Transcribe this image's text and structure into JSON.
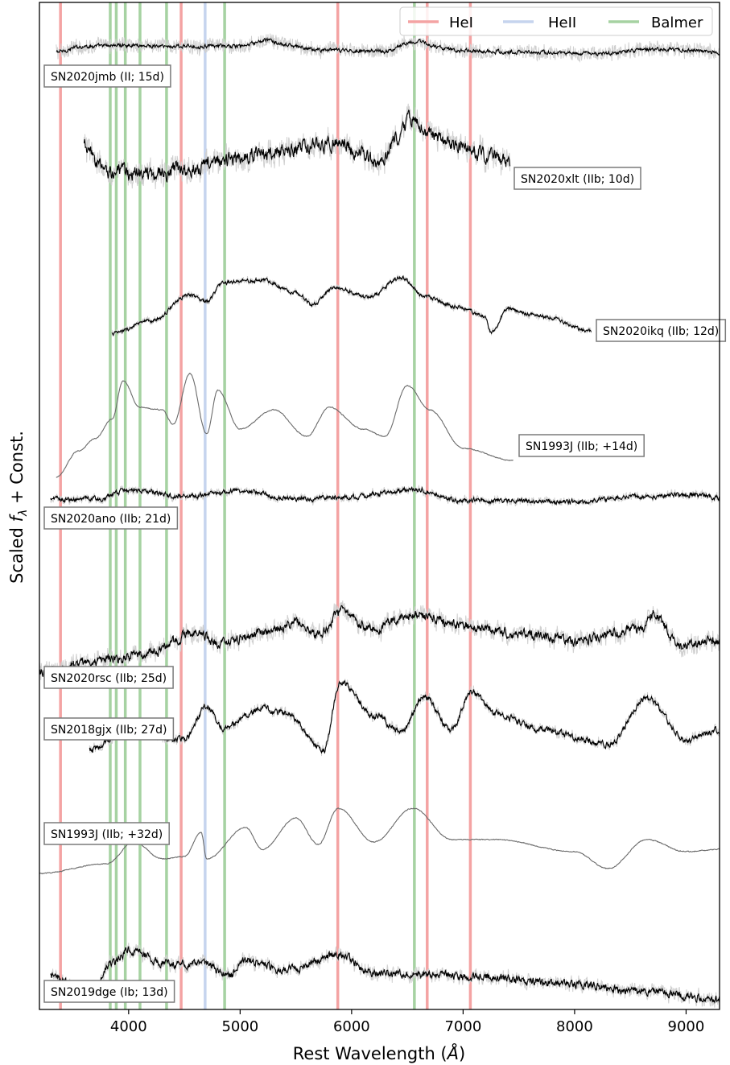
{
  "chart_data": {
    "type": "line",
    "xlabel_prefix": "Rest Wavelength (",
    "xlabel_unit": "Å",
    "xlabel_suffix": ")",
    "ylabel_prefix": "Scaled ",
    "ylabel_symbol": "f",
    "ylabel_sub": "λ",
    "ylabel_suffix": " + Const.",
    "xlim": [
      3200,
      9300
    ],
    "x_ticks": [
      4000,
      5000,
      6000,
      7000,
      8000,
      9000
    ],
    "x_tick_labels": [
      "4000",
      "5000",
      "6000",
      "7000",
      "8000",
      "9000"
    ],
    "y_ticks_shown": false,
    "grid": false,
    "legend": {
      "placement": "top-right",
      "entries": [
        {
          "label": "HeI",
          "color": "#f4a3a3"
        },
        {
          "label": "HeII",
          "color": "#c6d4ee"
        },
        {
          "label": "Balmer",
          "color": "#a6d2a2"
        }
      ]
    },
    "reference_lines": [
      {
        "group": "HeI",
        "wavelengths": [
          3389,
          4471,
          5876,
          6678,
          7065
        ],
        "color": "#f4a3a3"
      },
      {
        "group": "HeII",
        "wavelengths": [
          4686
        ],
        "color": "#c6d4ee"
      },
      {
        "group": "Balmer",
        "wavelengths": [
          3835,
          3889,
          3970,
          4102,
          4340,
          4861,
          6563
        ],
        "color": "#a6d2a2"
      }
    ],
    "series": [
      {
        "name": "SN2020jmb (II; 15d)",
        "color": "#000000",
        "raw_color": "#d0d0d0",
        "range": [
          3350,
          9300
        ],
        "anchors": [
          [
            3350,
            0.12
          ],
          [
            3600,
            0.35
          ],
          [
            4000,
            0.4
          ],
          [
            4300,
            0.35
          ],
          [
            5000,
            0.35
          ],
          [
            5250,
            0.6
          ],
          [
            5400,
            0.4
          ],
          [
            5700,
            0.2
          ],
          [
            6300,
            0.15
          ],
          [
            6550,
            0.55
          ],
          [
            6900,
            0.2
          ],
          [
            7500,
            0.1
          ],
          [
            8200,
            0.05
          ],
          [
            8800,
            0.25
          ],
          [
            9300,
            0.1
          ]
        ],
        "noise": 0.12,
        "raw_noise": 0.6
      },
      {
        "name": "SN2020xlt (IIb; 10d)",
        "color": "#000000",
        "raw_color": "#d0d0d0",
        "range": [
          3600,
          7420
        ],
        "anchors": [
          [
            3600,
            0.5
          ],
          [
            3650,
            0.1
          ],
          [
            3800,
            -0.6
          ],
          [
            4200,
            -0.7
          ],
          [
            4600,
            -0.4
          ],
          [
            4900,
            -0.1
          ],
          [
            5200,
            0.1
          ],
          [
            5600,
            0.4
          ],
          [
            5900,
            0.6
          ],
          [
            6050,
            0.2
          ],
          [
            6250,
            -0.3
          ],
          [
            6400,
            0.7
          ],
          [
            6550,
            1.6
          ],
          [
            6700,
            1.0
          ],
          [
            6900,
            0.5
          ],
          [
            7200,
            0.1
          ],
          [
            7420,
            -0.2
          ]
        ],
        "noise": 0.45,
        "raw_noise": 0.9
      },
      {
        "name": "SN2020ikq (IIb; 12d)",
        "color": "#000000",
        "raw_color": "#d0d0d0",
        "range": [
          3850,
          8150
        ],
        "anchors": [
          [
            3850,
            -1.3
          ],
          [
            4200,
            -0.8
          ],
          [
            4550,
            0.3
          ],
          [
            4700,
            0.0
          ],
          [
            4850,
            0.8
          ],
          [
            5200,
            0.9
          ],
          [
            5500,
            0.4
          ],
          [
            5650,
            -0.1
          ],
          [
            5850,
            0.6
          ],
          [
            6150,
            0.2
          ],
          [
            6450,
            1.0
          ],
          [
            6650,
            0.2
          ],
          [
            6950,
            -0.2
          ],
          [
            7200,
            -0.6
          ],
          [
            7250,
            -1.3
          ],
          [
            7400,
            -0.3
          ],
          [
            7700,
            -0.6
          ],
          [
            8150,
            -1.2
          ]
        ],
        "noise": 0.12,
        "raw_noise": 0.25
      },
      {
        "name": "SN1993J (IIb; +14d)",
        "color": "#6b6b6b",
        "raw_color": null,
        "range": [
          3350,
          7450
        ],
        "anchors": [
          [
            3350,
            -2.6
          ],
          [
            3550,
            -1.5
          ],
          [
            3700,
            -1.0
          ],
          [
            3850,
            -0.2
          ],
          [
            3950,
            1.4
          ],
          [
            4100,
            0.3
          ],
          [
            4300,
            0.2
          ],
          [
            4400,
            -0.4
          ],
          [
            4550,
            1.7
          ],
          [
            4700,
            -0.8
          ],
          [
            4800,
            1.0
          ],
          [
            5000,
            -0.6
          ],
          [
            5300,
            0.2
          ],
          [
            5600,
            -0.9
          ],
          [
            5800,
            0.3
          ],
          [
            6100,
            -0.6
          ],
          [
            6300,
            -0.9
          ],
          [
            6500,
            1.2
          ],
          [
            6700,
            0.2
          ],
          [
            7000,
            -1.4
          ],
          [
            7450,
            -1.9
          ]
        ],
        "noise": 0.03,
        "raw_noise": 0.0
      },
      {
        "name": "SN2020ano (IIb; 21d)",
        "color": "#000000",
        "raw_color": "#d0d0d0",
        "range": [
          3300,
          9300
        ],
        "anchors": [
          [
            3300,
            0.0
          ],
          [
            3750,
            0.0
          ],
          [
            4000,
            0.4
          ],
          [
            4500,
            0.1
          ],
          [
            5000,
            0.35
          ],
          [
            5500,
            0.0
          ],
          [
            6000,
            0.1
          ],
          [
            6550,
            0.4
          ],
          [
            7000,
            -0.05
          ],
          [
            8000,
            -0.1
          ],
          [
            8600,
            0.1
          ],
          [
            9000,
            0.2
          ],
          [
            9300,
            0.05
          ]
        ],
        "noise": 0.15,
        "raw_noise": 0.3
      },
      {
        "name": "SN2020rsc (IIb; 25d)",
        "color": "#000000",
        "raw_color": "#d0d0d0",
        "range": [
          3200,
          9300
        ],
        "anchors": [
          [
            3200,
            -1.5
          ],
          [
            3800,
            -1.0
          ],
          [
            4200,
            -0.7
          ],
          [
            4600,
            0.2
          ],
          [
            4800,
            -0.3
          ],
          [
            5200,
            0.1
          ],
          [
            5500,
            0.6
          ],
          [
            5700,
            0.0
          ],
          [
            5900,
            1.0
          ],
          [
            6200,
            0.3
          ],
          [
            6550,
            0.9
          ],
          [
            7000,
            0.4
          ],
          [
            7500,
            0.1
          ],
          [
            8000,
            -0.2
          ],
          [
            8600,
            0.3
          ],
          [
            8700,
            0.9
          ],
          [
            8950,
            -0.4
          ],
          [
            9300,
            -0.2
          ]
        ],
        "noise": 0.3,
        "raw_noise": 0.7
      },
      {
        "name": "SN2018gjx (IIb; 27d)",
        "color": "#000000",
        "raw_color": "#d0d0d0",
        "range": [
          3650,
          9300
        ],
        "anchors": [
          [
            3650,
            -1.2
          ],
          [
            4000,
            -0.5
          ],
          [
            4500,
            -0.8
          ],
          [
            4700,
            0.6
          ],
          [
            4850,
            -0.3
          ],
          [
            5200,
            0.5
          ],
          [
            5400,
            0.3
          ],
          [
            5750,
            -1.2
          ],
          [
            5900,
            1.6
          ],
          [
            6200,
            0.2
          ],
          [
            6450,
            -0.4
          ],
          [
            6650,
            1.0
          ],
          [
            6900,
            -0.4
          ],
          [
            7070,
            1.2
          ],
          [
            7300,
            0.3
          ],
          [
            7700,
            -0.4
          ],
          [
            8300,
            -1.0
          ],
          [
            8650,
            0.9
          ],
          [
            9000,
            -0.8
          ],
          [
            9300,
            -0.4
          ]
        ],
        "noise": 0.2,
        "raw_noise": 0.35
      },
      {
        "name": "SN1993J (IIb; +32d)",
        "color": "#6b6b6b",
        "raw_color": null,
        "range": [
          3200,
          9300
        ],
        "anchors": [
          [
            3200,
            -1.5
          ],
          [
            3800,
            -1.1
          ],
          [
            4050,
            -0.2
          ],
          [
            4300,
            -0.9
          ],
          [
            4500,
            -0.8
          ],
          [
            4650,
            0.2
          ],
          [
            4700,
            -0.9
          ],
          [
            5050,
            0.4
          ],
          [
            5200,
            -0.5
          ],
          [
            5500,
            0.8
          ],
          [
            5700,
            -0.3
          ],
          [
            5880,
            1.2
          ],
          [
            6200,
            -0.2
          ],
          [
            6550,
            1.2
          ],
          [
            6900,
            -0.1
          ],
          [
            7300,
            -0.1
          ],
          [
            8000,
            -0.6
          ],
          [
            8300,
            -1.3
          ],
          [
            8650,
            -0.1
          ],
          [
            9000,
            -0.6
          ],
          [
            9300,
            -0.5
          ]
        ],
        "noise": 0.03,
        "raw_noise": 0.0
      },
      {
        "name": "SN2019dge (Ib; 13d)",
        "color": "#000000",
        "raw_color": "#d0d0d0",
        "range": [
          3300,
          9300
        ],
        "anchors": [
          [
            3300,
            -0.3
          ],
          [
            3650,
            -1.0
          ],
          [
            3850,
            0.3
          ],
          [
            4000,
            0.8
          ],
          [
            4400,
            0.2
          ],
          [
            4650,
            0.3
          ],
          [
            4900,
            -0.2
          ],
          [
            5050,
            0.4
          ],
          [
            5400,
            0.0
          ],
          [
            5880,
            0.6
          ],
          [
            6200,
            -0.1
          ],
          [
            6700,
            -0.2
          ],
          [
            7200,
            -0.3
          ],
          [
            8000,
            -0.6
          ],
          [
            8600,
            -0.9
          ],
          [
            9300,
            -1.2
          ]
        ],
        "noise": 0.25,
        "raw_noise": 0.5
      }
    ]
  }
}
